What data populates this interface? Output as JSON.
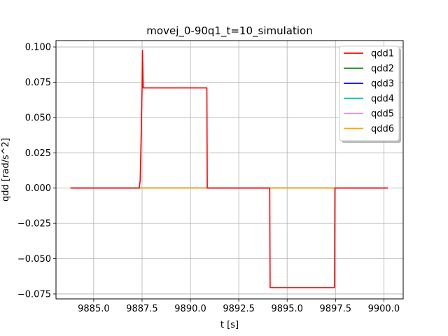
{
  "chart_data": {
    "type": "line",
    "title": "movej_0-90q1_t=10_simulation",
    "xlabel": "t [s]",
    "ylabel": "qdd [rad/s^2]",
    "xlim": [
      9883.05,
      9901.0
    ],
    "ylim": [
      -0.0785,
      0.1045
    ],
    "xticks": [
      9885.0,
      9887.5,
      9890.0,
      9892.5,
      9895.0,
      9897.5,
      9900.0
    ],
    "xtick_labels": [
      "9885.0",
      "9887.5",
      "9890.0",
      "9892.5",
      "9895.0",
      "9897.5",
      "9900.0"
    ],
    "yticks": [
      -0.075,
      -0.05,
      -0.025,
      0.0,
      0.025,
      0.05,
      0.075,
      0.1
    ],
    "ytick_labels": [
      "−0.075",
      "−0.050",
      "−0.025",
      "0.000",
      "0.025",
      "0.050",
      "0.075",
      "0.100"
    ],
    "grid": true,
    "legend_position": "top-right",
    "series": [
      {
        "name": "qdd1",
        "color": "#ff0000",
        "x": [
          9883.8,
          9887.35,
          9887.4,
          9887.45,
          9887.5,
          9887.52,
          9887.56,
          9890.85,
          9890.87,
          9894.1,
          9894.12,
          9897.45,
          9897.47,
          9900.2
        ],
        "y": [
          0.0,
          0.0,
          0.005,
          0.035,
          0.07,
          0.0975,
          0.071,
          0.071,
          0.0,
          0.0,
          -0.0705,
          -0.0705,
          0.0,
          0.0
        ]
      },
      {
        "name": "qdd2",
        "color": "#008000",
        "x": [
          9883.8,
          9900.2
        ],
        "y": [
          0.0,
          0.0
        ]
      },
      {
        "name": "qdd3",
        "color": "#0000ff",
        "x": [
          9883.8,
          9900.2
        ],
        "y": [
          0.0,
          0.0
        ]
      },
      {
        "name": "qdd4",
        "color": "#00bfbf",
        "x": [
          9883.8,
          9900.2
        ],
        "y": [
          0.0,
          0.0
        ]
      },
      {
        "name": "qdd5",
        "color": "#ee82ee",
        "x": [
          9883.8,
          9900.2
        ],
        "y": [
          0.0,
          0.0
        ]
      },
      {
        "name": "qdd6",
        "color": "#ffa500",
        "x": [
          9883.8,
          9900.2
        ],
        "y": [
          0.0,
          0.0
        ]
      }
    ]
  }
}
